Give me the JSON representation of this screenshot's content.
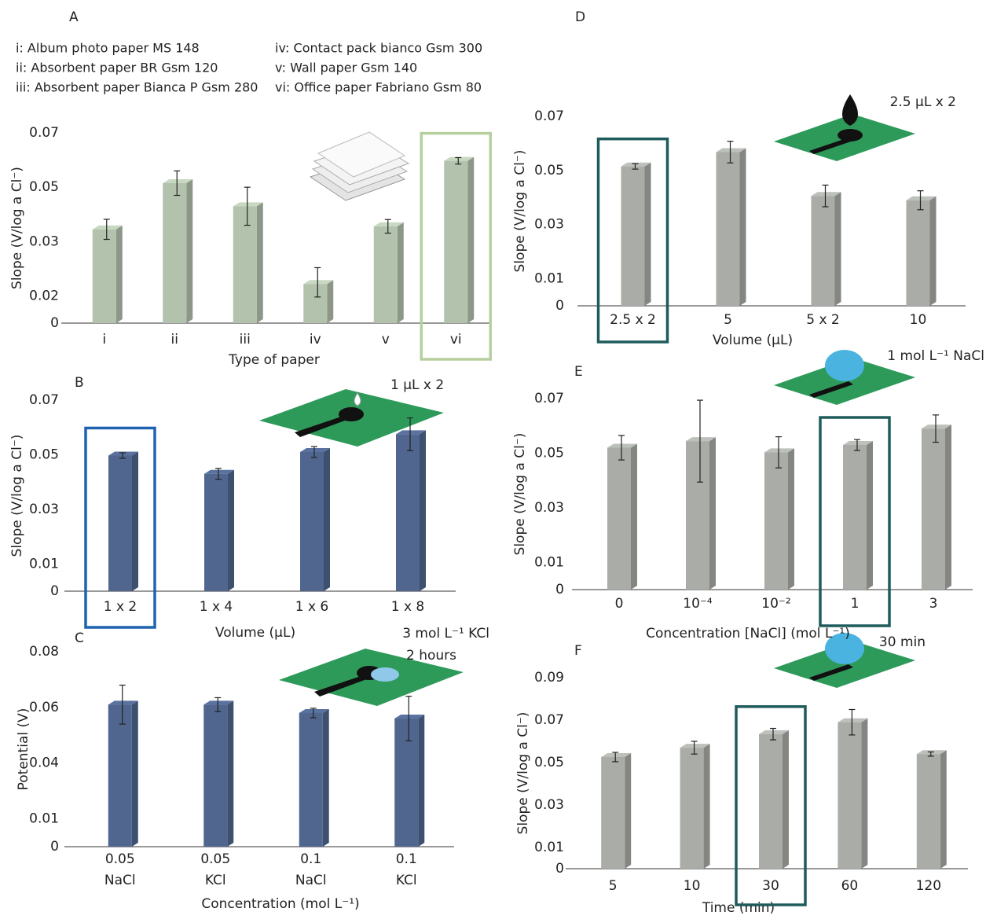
{
  "chart_data": [
    {
      "type": "bar",
      "panel": "A",
      "ylabel": "Slope (V/log a Cl⁻)",
      "xlabel": "Type of paper",
      "notes": [
        "i: Album photo paper MS 148",
        "ii: Absorbent paper BR Gsm 120",
        "iii: Absorbent paper Bianca P Gsm 280",
        "iv: Contact pack bianco Gsm 300",
        "v: Wall paper Gsm 140",
        "vi: Office paper Fabriano Gsm 80"
      ],
      "categories": [
        "i",
        "ii",
        "iii",
        "iv",
        "v",
        "vi"
      ],
      "values": [
        0.0345,
        0.0515,
        0.043,
        0.0222,
        0.0356,
        0.0597
      ],
      "errors": [
        0.0037,
        0.0045,
        0.007,
        0.003,
        0.0025,
        0.0012
      ],
      "color": "#b3c2ad",
      "highlight": 5,
      "highlight_color": "#b7cf9f",
      "ylim": [
        0,
        0.07
      ],
      "yticks": [
        0,
        0.02,
        0.03,
        0.05,
        0.07
      ]
    },
    {
      "type": "bar",
      "panel": "B",
      "ylabel": "Slope (V/log a Cl⁻)",
      "xlabel": "Volume (µL)",
      "annotations": [
        "1 µL x 2"
      ],
      "categories": [
        "1 x 2",
        "1 x 4",
        "1 x 6",
        "1 x 8"
      ],
      "values": [
        0.0497,
        0.043,
        0.051,
        0.0575
      ],
      "errors": [
        0.001,
        0.002,
        0.002,
        0.006
      ],
      "color": "#50668f",
      "highlight": 0,
      "highlight_color": "#1f62b0",
      "ylim": [
        0,
        0.07
      ],
      "yticks": [
        0,
        0.01,
        0.03,
        0.05,
        0.07
      ]
    },
    {
      "type": "bar",
      "panel": "C",
      "ylabel": "Potential (V)",
      "xlabel": "Concentration (mol L⁻¹)",
      "annotations": [
        "3 mol L⁻¹ KCl",
        "2 hours"
      ],
      "categories": [
        [
          "0.05",
          "NaCl"
        ],
        [
          "0.05",
          "KCl"
        ],
        [
          "0.1",
          "NaCl"
        ],
        [
          "0.1",
          "KCl"
        ]
      ],
      "values": [
        0.061,
        0.061,
        0.058,
        0.056
      ],
      "errors": [
        0.007,
        0.0025,
        0.0017,
        0.008
      ],
      "color": "#50668f",
      "ylim": [
        0,
        0.08
      ],
      "yticks": [
        0,
        0.01,
        0.04,
        0.06,
        0.08
      ]
    },
    {
      "type": "bar",
      "panel": "D",
      "ylabel": "Slope (V/log a Cl⁻)",
      "xlabel": "Volume (µL)",
      "annotations": [
        "2.5 µL x 2"
      ],
      "categories": [
        "2.5 x 2",
        "5",
        "5 x 2",
        "10"
      ],
      "values": [
        0.0515,
        0.0568,
        0.0406,
        0.039
      ],
      "errors": [
        0.001,
        0.004,
        0.004,
        0.0035
      ],
      "color": "#a9aca7",
      "highlight": 0,
      "highlight_color": "#1f5b5b",
      "ylim": [
        0,
        0.07
      ],
      "yticks": [
        0,
        0.01,
        0.03,
        0.05,
        0.07
      ]
    },
    {
      "type": "bar",
      "panel": "E",
      "ylabel": "Slope (V/log a Cl⁻)",
      "xlabel": "Concentration [NaCl] (mol L⁻¹)",
      "annotations": [
        "1 mol L⁻¹ NaCl"
      ],
      "categories": [
        "0",
        "10⁻⁴",
        "10⁻²",
        "1",
        "3"
      ],
      "values": [
        0.052,
        0.0544,
        0.0503,
        0.053,
        0.059
      ],
      "errors": [
        0.0045,
        0.015,
        0.0057,
        0.002,
        0.005
      ],
      "color": "#a9aca7",
      "highlight": 3,
      "highlight_color": "#1f5b5b",
      "ylim": [
        0,
        0.07
      ],
      "yticks": [
        0,
        0.01,
        0.03,
        0.05,
        0.07
      ]
    },
    {
      "type": "bar",
      "panel": "F",
      "ylabel": "Slope (V/log a Cl⁻)",
      "xlabel": "Time (min)",
      "annotations": [
        "30 min"
      ],
      "categories": [
        "5",
        "10",
        "30",
        "60",
        "120"
      ],
      "values": [
        0.0526,
        0.057,
        0.0634,
        0.069,
        0.054
      ],
      "errors": [
        0.0022,
        0.003,
        0.0027,
        0.006,
        0.001
      ],
      "color": "#a9aca7",
      "highlight": 2,
      "highlight_color": "#1f5b5b",
      "ylim": [
        0,
        0.09
      ],
      "yticks": [
        0,
        0.01,
        0.03,
        0.05,
        0.07,
        0.09
      ]
    }
  ]
}
